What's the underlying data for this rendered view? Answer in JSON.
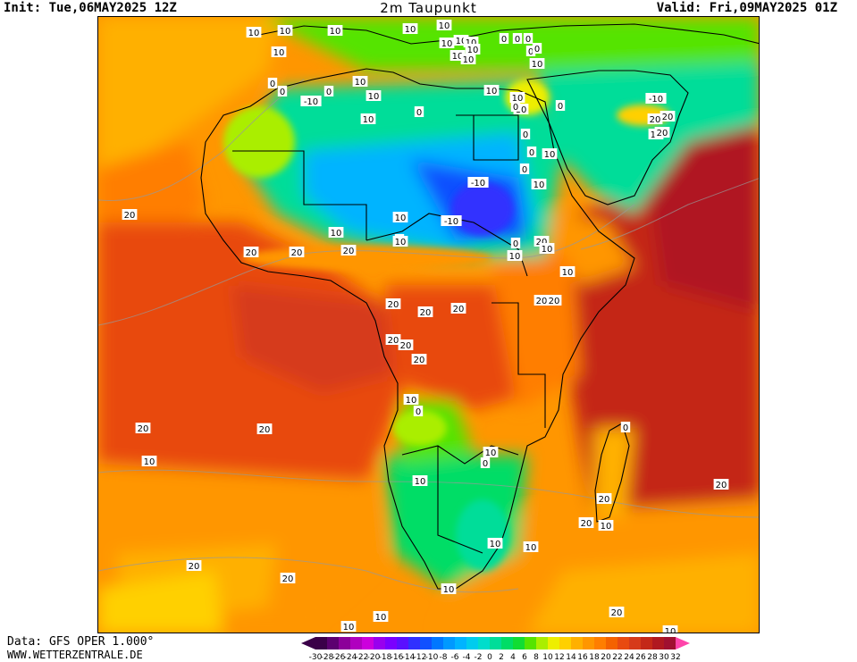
{
  "header": {
    "init_text": "Init: Tue,06MAY2025 12Z",
    "title": "2m Taupunkt",
    "valid_text": "Valid: Fri,09MAY2025 01Z"
  },
  "footer": {
    "source_text": "Data: GFS OPER 1.000°",
    "url_text": "WWW.WETTERZENTRALE.DE"
  },
  "colorbar": {
    "tick_labels": [
      "-30",
      "-28",
      "-26",
      "-24",
      "-22",
      "-20",
      "-18",
      "-16",
      "-14",
      "-12",
      "-10",
      "-8",
      "-6",
      "-4",
      "-2",
      "0",
      "2",
      "4",
      "6",
      "8",
      "10",
      "12",
      "14",
      "16",
      "18",
      "20",
      "22",
      "24",
      "26",
      "28",
      "30",
      "32"
    ],
    "colors": [
      "#3a0048",
      "#5c0070",
      "#8c0099",
      "#b000bf",
      "#cc00dd",
      "#9900ee",
      "#7a00ff",
      "#5a10ff",
      "#3030ff",
      "#1050ff",
      "#0077ff",
      "#0099ff",
      "#00b4ff",
      "#00ccee",
      "#00ddcc",
      "#00dd99",
      "#00dd66",
      "#11dd33",
      "#55e400",
      "#aaee00",
      "#eeee00",
      "#ffd000",
      "#ffb000",
      "#ff9600",
      "#ff7e00",
      "#f46200",
      "#e84a10",
      "#d63a1a",
      "#c42818",
      "#b01820",
      "#a01030",
      "#ff44aa"
    ]
  },
  "contour_labels": [
    {
      "text": "10"
    },
    {
      "text": "10"
    },
    {
      "text": "10"
    },
    {
      "text": "10"
    },
    {
      "text": "10"
    },
    {
      "text": "10"
    },
    {
      "text": "10"
    },
    {
      "text": "0"
    },
    {
      "text": "0"
    },
    {
      "text": "0"
    },
    {
      "text": "10"
    },
    {
      "text": "10"
    },
    {
      "text": "10"
    },
    {
      "text": "0"
    },
    {
      "text": "0"
    },
    {
      "text": "10"
    },
    {
      "text": "10"
    },
    {
      "text": "10"
    },
    {
      "text": "0"
    },
    {
      "text": "0"
    },
    {
      "text": "-10"
    },
    {
      "text": "0"
    },
    {
      "text": "10"
    },
    {
      "text": "10"
    },
    {
      "text": "10"
    },
    {
      "text": "0"
    },
    {
      "text": "10"
    },
    {
      "text": "10"
    },
    {
      "text": "10"
    },
    {
      "text": "0"
    },
    {
      "text": "0"
    },
    {
      "text": "-10"
    },
    {
      "text": "20"
    },
    {
      "text": "10"
    },
    {
      "text": "20"
    },
    {
      "text": "20"
    },
    {
      "text": "0"
    },
    {
      "text": "0"
    },
    {
      "text": "10"
    },
    {
      "text": "-10"
    },
    {
      "text": "0"
    },
    {
      "text": "10"
    },
    {
      "text": "-10"
    },
    {
      "text": "0"
    },
    {
      "text": "10"
    },
    {
      "text": "20"
    },
    {
      "text": "10"
    },
    {
      "text": "10"
    },
    {
      "text": "20"
    },
    {
      "text": "20"
    },
    {
      "text": "20"
    },
    {
      "text": "0"
    },
    {
      "text": "10"
    },
    {
      "text": "20"
    },
    {
      "text": "10"
    },
    {
      "text": "10"
    },
    {
      "text": "20"
    },
    {
      "text": "20"
    },
    {
      "text": "20"
    },
    {
      "text": "20"
    },
    {
      "text": "20"
    },
    {
      "text": "20"
    },
    {
      "text": "20"
    },
    {
      "text": "20"
    },
    {
      "text": "20"
    },
    {
      "text": "20"
    },
    {
      "text": "10"
    },
    {
      "text": "10"
    },
    {
      "text": "0"
    },
    {
      "text": "10"
    },
    {
      "text": "0"
    },
    {
      "text": "10"
    },
    {
      "text": "20"
    },
    {
      "text": "20"
    },
    {
      "text": "10"
    },
    {
      "text": "20"
    },
    {
      "text": "20"
    },
    {
      "text": "20"
    },
    {
      "text": "10"
    },
    {
      "text": "20"
    },
    {
      "text": "10"
    },
    {
      "text": "10"
    },
    {
      "text": "10"
    },
    {
      "text": "10"
    },
    {
      "text": "10"
    },
    {
      "text": "0"
    },
    {
      "text": "20"
    }
  ]
}
